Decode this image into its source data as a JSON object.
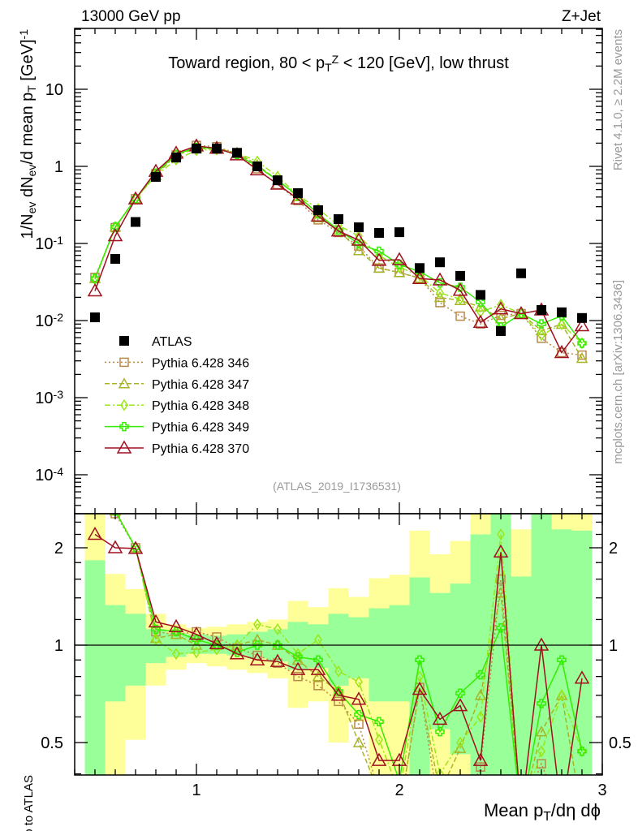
{
  "chart_data": {
    "type": "scatter",
    "header_left": "13000 GeV pp",
    "header_right": "Z+Jet",
    "title": [
      {
        "t": "Toward region, 80 < p"
      },
      {
        "t": "T",
        "s": "sub"
      },
      {
        "t": "Z",
        "s": "sup"
      },
      {
        "t": " < 120 [GeV], low thrust"
      }
    ],
    "ylabel": [
      {
        "t": "1/N"
      },
      {
        "t": "ev",
        "s": "sub"
      },
      {
        "t": " dN"
      },
      {
        "t": "ev",
        "s": "sub"
      },
      {
        "t": "/d mean p"
      },
      {
        "t": "T",
        "s": "sub"
      },
      {
        "t": " [GeV]"
      },
      {
        "t": "-1",
        "s": "sup"
      }
    ],
    "xlabel": [
      {
        "t": "Mean p"
      },
      {
        "t": "T",
        "s": "sub"
      },
      {
        "t": "/dη dϕ"
      }
    ],
    "ratio_ylabel": "Ratio to ATLAS",
    "side_text_1": "Rivet 4.1.0, ≥ 2.2M events",
    "side_text_2": "mcplots.cern.ch [arXiv:1306.3436]",
    "analysis_id": "(ATLAS_2019_I1736531)",
    "xlim": [
      0.4,
      3.0
    ],
    "ylim": [
      3.1e-05,
      61
    ],
    "yscale": "log",
    "ratio_ylim": [
      0.4,
      2.55
    ],
    "x_ticks": [
      "1",
      "2",
      "3"
    ],
    "y_ticks": [
      {
        "m": "10",
        "e": "-4"
      },
      {
        "m": "10",
        "e": "-3"
      },
      {
        "m": "10",
        "e": "-2"
      },
      {
        "m": "10",
        "e": "-1"
      },
      {
        "m": "1",
        "e": ""
      },
      {
        "m": "10",
        "e": ""
      }
    ],
    "ratio_ticks": [
      "0.5",
      "1",
      "2"
    ],
    "legend_position": "lower-left",
    "x": [
      0.5,
      0.6,
      0.7,
      0.8,
      0.9,
      1.0,
      1.1,
      1.2,
      1.3,
      1.4,
      1.5,
      1.6,
      1.7,
      1.8,
      1.9,
      2.0,
      2.1,
      2.2,
      2.3,
      2.4,
      2.5,
      2.6,
      2.7,
      2.8,
      2.9
    ],
    "data": {
      "name": "ATLAS",
      "values": [
        0.011,
        0.063,
        0.19,
        0.73,
        1.3,
        1.7,
        1.7,
        1.5,
        1.0,
        0.66,
        0.45,
        0.27,
        0.207,
        0.162,
        0.137,
        0.14,
        0.048,
        0.057,
        0.038,
        0.0215,
        0.0073,
        0.041,
        0.0137,
        0.0128,
        0.0108
      ],
      "band_green": [
        [
          0.3,
          1.83
        ],
        [
          0.67,
          1.33
        ],
        [
          0.75,
          1.25
        ],
        [
          0.88,
          1.12
        ],
        [
          0.92,
          1.09
        ],
        [
          0.94,
          1.08
        ],
        [
          0.94,
          1.07
        ],
        [
          0.93,
          1.08
        ],
        [
          0.91,
          1.1
        ],
        [
          0.89,
          1.12
        ],
        [
          0.84,
          1.18
        ],
        [
          0.85,
          1.16
        ],
        [
          0.75,
          1.25
        ],
        [
          0.79,
          1.22
        ],
        [
          0.67,
          1.3
        ],
        [
          0.67,
          1.33
        ],
        [
          0.3,
          1.62
        ],
        [
          0.55,
          1.45
        ],
        [
          0.46,
          1.55
        ],
        [
          0.3,
          2.2
        ],
        [
          0.3,
          3
        ],
        [
          0.3,
          1.63
        ],
        [
          0.3,
          3
        ],
        [
          0.3,
          2.28
        ],
        [
          0.3,
          2.26
        ]
      ],
      "band_yellow": [
        [
          0.3,
          3
        ],
        [
          0.3,
          1.66
        ],
        [
          0.51,
          1.49
        ],
        [
          0.75,
          1.25
        ],
        [
          0.84,
          1.16
        ],
        [
          0.88,
          1.13
        ],
        [
          0.86,
          1.14
        ],
        [
          0.84,
          1.16
        ],
        [
          0.82,
          1.18
        ],
        [
          0.79,
          1.2
        ],
        [
          0.64,
          1.37
        ],
        [
          0.67,
          1.31
        ],
        [
          0.5,
          1.5
        ],
        [
          0.58,
          1.41
        ],
        [
          0.3,
          1.61
        ],
        [
          0.3,
          1.65
        ],
        [
          0.3,
          2.26
        ],
        [
          0.3,
          1.91
        ],
        [
          0.3,
          2.1
        ],
        [
          0.3,
          3
        ],
        [
          0.3,
          3
        ],
        [
          0.3,
          2.28
        ],
        [
          0.3,
          3
        ],
        [
          0.3,
          3
        ],
        [
          0.3,
          3
        ]
      ]
    },
    "series": [
      {
        "name": "Pythia 6.428 346",
        "color": "#b8894a",
        "marker": "square",
        "dash": "2,3",
        "ratio": [
          3.3,
          2.55,
          2.0,
          1.1,
          1.08,
          1.1,
          1.06,
          0.98,
          0.93,
          0.88,
          0.8,
          0.75,
          0.67,
          0.57,
          0.35,
          0.3,
          0.74,
          0.3,
          0.3,
          0.42,
          1.6,
          0.3,
          0.43,
          0.3,
          0.33
        ]
      },
      {
        "name": "Pythia 6.428 347",
        "color": "#a8b428",
        "marker": "triangle",
        "dash": "6,3",
        "ratio": [
          3.2,
          2.6,
          2.0,
          1.05,
          1.08,
          1.0,
          1.0,
          1.0,
          1.04,
          1.0,
          0.9,
          0.8,
          0.72,
          0.5,
          0.35,
          0.3,
          0.74,
          0.35,
          0.48,
          0.7,
          1.45,
          0.3,
          0.54,
          0.7,
          0.3
        ]
      },
      {
        "name": "Pythia 6.428 348",
        "color": "#99e619",
        "marker": "diamond",
        "dash": "7,3,2,3",
        "ratio": [
          3.1,
          2.6,
          2.0,
          1.04,
          0.94,
          0.95,
          0.97,
          1.0,
          1.16,
          1.12,
          0.94,
          1.04,
          0.83,
          0.77,
          0.51,
          0.35,
          0.8,
          0.4,
          0.5,
          0.6,
          2.2,
          0.3,
          0.47,
          0.7,
          0.47
        ]
      },
      {
        "name": "Pythia 6.428 349",
        "color": "#33ee00",
        "marker": "cross",
        "dash": "",
        "ratio": [
          3.2,
          2.6,
          2.0,
          1.12,
          1.1,
          1.04,
          1.0,
          0.95,
          1.0,
          1.0,
          0.92,
          0.9,
          0.72,
          0.61,
          0.58,
          0.38,
          0.9,
          0.54,
          0.71,
          0.81,
          1.13,
          0.3,
          0.66,
          0.9,
          0.47
        ]
      },
      {
        "name": "Pythia 6.428 370",
        "color": "#a0101e",
        "marker": "triangle-big",
        "dash": "",
        "ratio": [
          2.2,
          2.0,
          1.99,
          1.18,
          1.14,
          1.08,
          1.01,
          0.94,
          0.9,
          0.89,
          0.84,
          0.84,
          0.7,
          0.68,
          0.44,
          0.44,
          0.73,
          0.59,
          0.65,
          0.44,
          1.94,
          0.3,
          1.0,
          0.3,
          0.79
        ]
      }
    ]
  }
}
